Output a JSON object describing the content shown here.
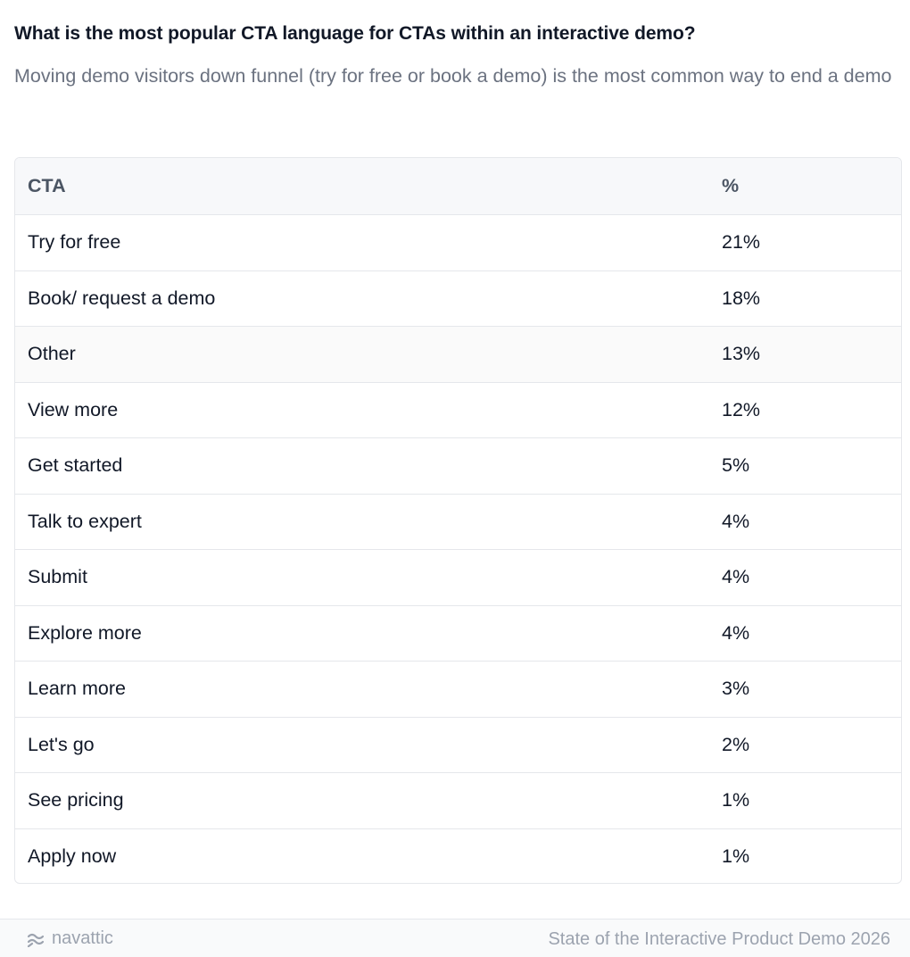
{
  "header": {
    "question": "What is the most popular CTA language for CTAs within an interactive demo?",
    "subtitle": "Moving demo visitors down funnel (try for free or book a demo) is the most common way to end a demo"
  },
  "chart_data": {
    "type": "table",
    "columns": [
      "CTA",
      "%"
    ],
    "rows": [
      {
        "cta": "Try for free",
        "pct": "21%",
        "value": 21
      },
      {
        "cta": "Book/ request a demo",
        "pct": "18%",
        "value": 18
      },
      {
        "cta": "Other",
        "pct": "13%",
        "value": 13
      },
      {
        "cta": "View more",
        "pct": "12%",
        "value": 12
      },
      {
        "cta": "Get started",
        "pct": "5%",
        "value": 5
      },
      {
        "cta": "Talk to expert",
        "pct": "4%",
        "value": 4
      },
      {
        "cta": "Submit",
        "pct": "4%",
        "value": 4
      },
      {
        "cta": "Explore more",
        "pct": "4%",
        "value": 4
      },
      {
        "cta": "Learn more",
        "pct": "3%",
        "value": 3
      },
      {
        "cta": "Let's go",
        "pct": "2%",
        "value": 2
      },
      {
        "cta": "See pricing",
        "pct": "1%",
        "value": 1
      },
      {
        "cta": "Apply now",
        "pct": "1%",
        "value": 1
      }
    ]
  },
  "footer": {
    "brand": "navattic",
    "brand_icon": "navattic-logo-icon",
    "source": "State of the Interactive Product Demo 2026"
  },
  "colors": {
    "text": "#111827",
    "muted": "#6b7280",
    "border": "#e5e7eb",
    "header_bg": "#f7f8fa"
  }
}
